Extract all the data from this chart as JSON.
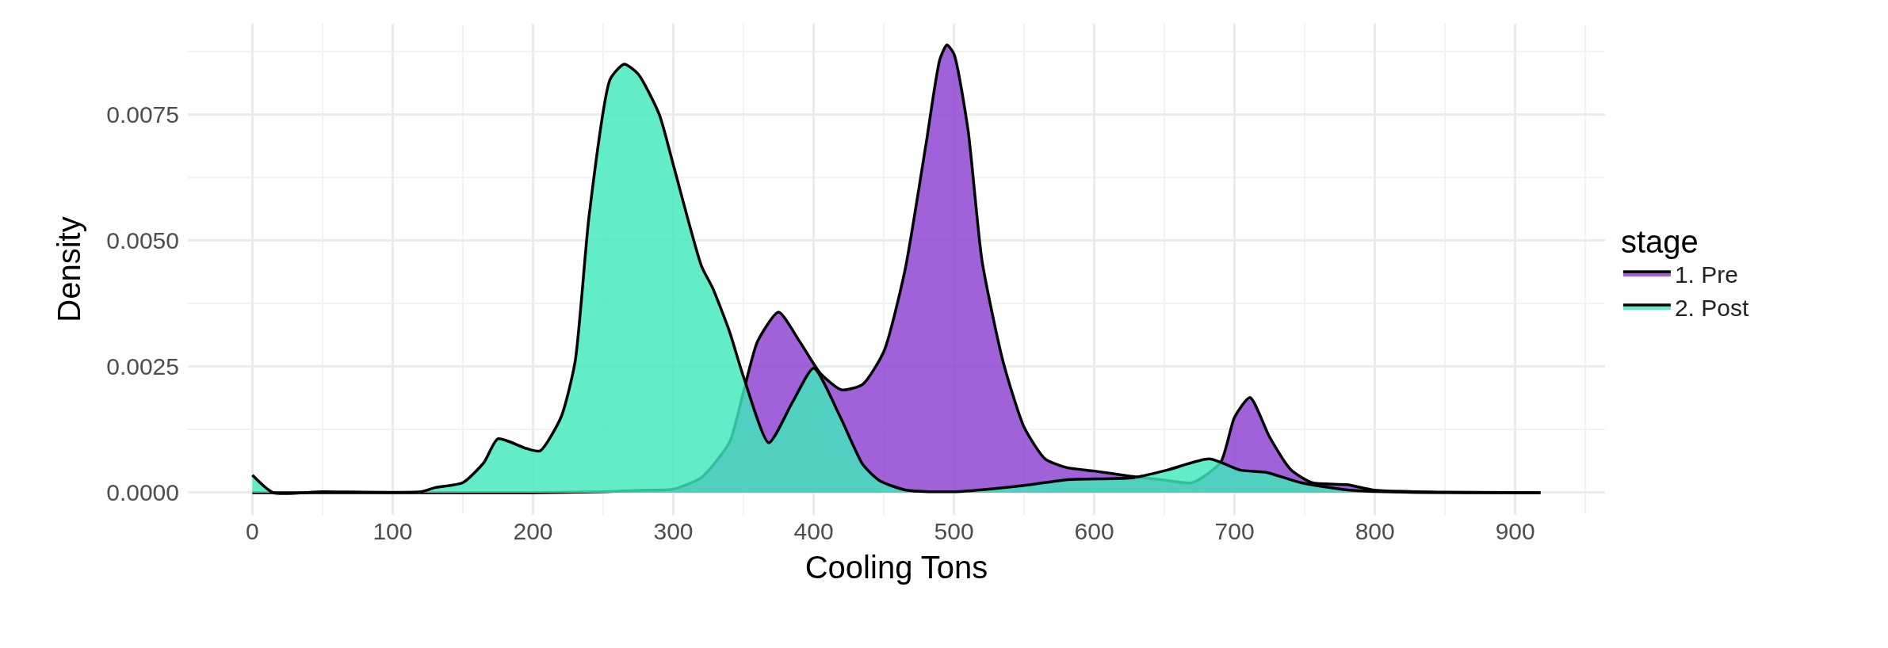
{
  "chart_data": {
    "type": "area",
    "xlabel": "Cooling Tons",
    "ylabel": "Density",
    "legend_title": "stage",
    "legend": "right",
    "grid": true,
    "line_style": "solid",
    "xlim": [
      -46,
      964
    ],
    "xticks": [
      0,
      100,
      200,
      300,
      400,
      500,
      600,
      700,
      800,
      900
    ],
    "ylim": [
      -0.00044,
      0.0093
    ],
    "yticks": [
      {
        "value": 0,
        "label": "0.0000"
      },
      {
        "value": 0.0025,
        "label": "0.0025"
      },
      {
        "value": 0.005,
        "label": "0.0050"
      },
      {
        "value": 0.0075,
        "label": "0.0075"
      }
    ],
    "series": [
      {
        "name": "1. Pre",
        "color": "#8b3fd0",
        "x": [
          0,
          100,
          200,
          250,
          280,
          300,
          320,
          340,
          350,
          360,
          375,
          390,
          405,
          420,
          435,
          450,
          465,
          480,
          490,
          495,
          500,
          510,
          520,
          535,
          550,
          565,
          580,
          600,
          625,
          650,
          670,
          690,
          700,
          711,
          725,
          740,
          755,
          780,
          800,
          850,
          918
        ],
        "values": [
          0,
          0,
          0,
          2e-05,
          5e-05,
          7e-05,
          0.0003,
          0.001,
          0.002,
          0.003,
          0.00358,
          0.003,
          0.00236,
          0.00204,
          0.00215,
          0.0028,
          0.0044,
          0.0069,
          0.0086,
          0.00888,
          0.0087,
          0.0072,
          0.0046,
          0.0026,
          0.0013,
          0.00067,
          0.0005,
          0.00043,
          0.00033,
          0.00025,
          0.0002,
          0.0006,
          0.0015,
          0.00189,
          0.0011,
          0.00046,
          0.0002,
          0.00016,
          5e-05,
          1e-05,
          0
        ]
      },
      {
        "name": "2. Post",
        "color": "#3fe8bb",
        "x": [
          0,
          15,
          50,
          120,
          130,
          150,
          165,
          175,
          195,
          205,
          220,
          230,
          240,
          255,
          265,
          275,
          290,
          300,
          320,
          328,
          340,
          350,
          368,
          385,
          400,
          419,
          435,
          447,
          466,
          500,
          549,
          581,
          628,
          652,
          682,
          704,
          723,
          747,
          782,
          821,
          918
        ],
        "values": [
          0.00035,
          0,
          2e-05,
          2e-05,
          0.0001,
          0.0002,
          0.0006,
          0.00107,
          0.00088,
          0.00083,
          0.0015,
          0.0026,
          0.0055,
          0.0082,
          0.0085,
          0.0083,
          0.0075,
          0.0065,
          0.0045,
          0.00406,
          0.0032,
          0.0023,
          0.00099,
          0.0018,
          0.00247,
          0.0015,
          0.00056,
          0.00024,
          5e-05,
          2e-05,
          0.00014,
          0.00026,
          0.0003,
          0.00045,
          0.00067,
          0.00045,
          0.0004,
          0.0002,
          5e-05,
          1e-05,
          0
        ]
      }
    ]
  }
}
